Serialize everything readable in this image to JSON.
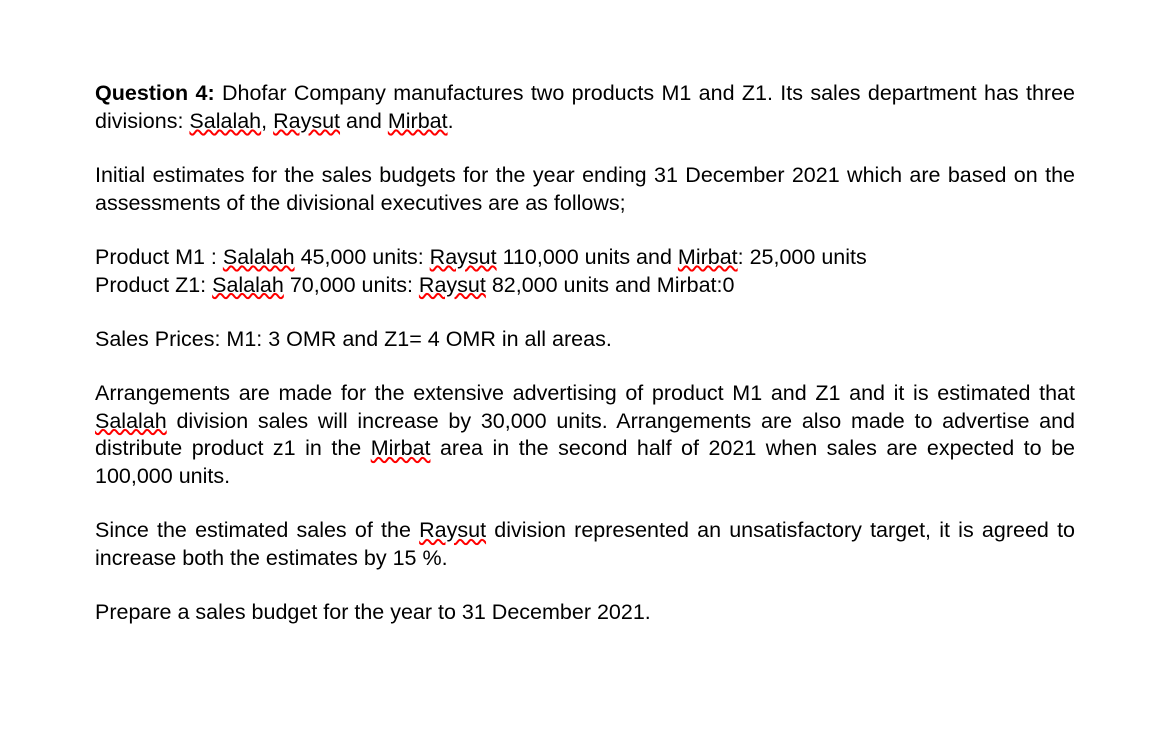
{
  "text_color": "#000000",
  "background_color": "#ffffff",
  "squiggle_color": "#ff0000",
  "font_family": "Arial",
  "font_size_pt": 16,
  "question": {
    "label": "Question 4:",
    "intro_part1": " Dhofar Company manufactures two products M1 and Z1. Its sales department has three divisions: ",
    "div1": "Salalah",
    "sep1": ", ",
    "div2": "Raysut",
    "sep2": " and ",
    "div3": "Mirbat",
    "intro_end": "."
  },
  "para2": "Initial estimates for the sales budgets for the year ending 31 December 2021 which are based on the assessments of the divisional executives are as follows;",
  "productM1": {
    "prefix": "Product M1 : ",
    "loc1": "Salalah",
    "val1": " 45,000 units: ",
    "loc2": "Raysut",
    "val2": " 110,000 units and ",
    "loc3": "Mirbat",
    "val3": ": 25,000 units"
  },
  "productZ1": {
    "prefix": "Product Z1: ",
    "loc1": "Salalah",
    "val1": " 70,000 units: ",
    "loc2": "Raysut",
    "val2": "  82,000 units and Mirbat:0"
  },
  "prices": "Sales Prices: M1: 3 OMR  and Z1= 4 OMR in all areas.",
  "arrangements": {
    "part1": "Arrangements are made for the extensive advertising of product M1 and Z1 and it is estimated that ",
    "loc1": "Salalah",
    "part2": " division sales will increase by 30,000 units. Arrangements are also made to advertise and distribute product z1 in the ",
    "loc2": "Mirbat",
    "part3": " area in the second half of 2021 when sales are expected to be 100,000 units."
  },
  "raysut_para": {
    "part1": "Since the estimated sales of the ",
    "loc": "Raysut",
    "part2": " division represented an unsatisfactory target, it is agreed to increase both the estimates by 15 %."
  },
  "prepare": "Prepare a sales budget for the year to 31 December 2021."
}
